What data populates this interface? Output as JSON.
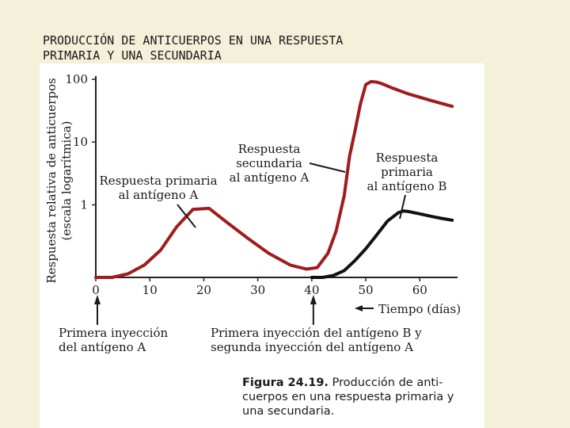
{
  "slide": {
    "title_line1": "PRODUCCIÓN DE ANTICUERPOS EN UNA RESPUESTA",
    "title_line2": "PRIMARIA Y UNA SECUNDARIA"
  },
  "caption": {
    "figure_label": "Figura 24.19.",
    "text_line1": " Producción de anti-",
    "text_line2": "cuerpos en una respuesta primaria y",
    "text_line3": "una secundaria."
  },
  "colors": {
    "antigen_a": "#a01c1c",
    "antigen_b": "#111111",
    "axis": "#222222",
    "text": "#1a1a1a"
  },
  "chart_data": {
    "type": "line",
    "xlabel": "Tiempo (días)",
    "ylabel_line1": "Respuesta relativa de anticuerpos",
    "ylabel_line2": "(escala logarítmica)",
    "yscale": "log",
    "xlim": [
      0,
      67
    ],
    "ylim": [
      0.07,
      100
    ],
    "x_ticks": [
      0,
      10,
      20,
      30,
      40,
      50,
      60
    ],
    "y_ticks": [
      1,
      10,
      100
    ],
    "grid": false,
    "series": [
      {
        "label": "antigen-a",
        "color": "#a01c1c",
        "x": [
          0,
          3,
          6,
          9,
          12,
          15,
          18,
          21,
          24,
          28,
          32,
          36,
          39,
          41,
          43,
          44.5,
          46,
          47,
          48,
          49,
          50,
          51,
          52,
          53,
          55,
          58,
          62,
          66
        ],
        "y": [
          0.07,
          0.07,
          0.08,
          0.11,
          0.19,
          0.45,
          0.85,
          0.88,
          0.55,
          0.3,
          0.17,
          0.11,
          0.095,
          0.1,
          0.17,
          0.38,
          1.4,
          6.0,
          15,
          40,
          82,
          92,
          90,
          85,
          72,
          58,
          46,
          37
        ]
      },
      {
        "label": "antigen-b",
        "color": "#111111",
        "x": [
          40,
          42,
          44,
          46,
          48,
          50,
          52,
          54,
          56,
          57,
          58,
          59,
          60,
          62,
          64,
          66
        ],
        "y": [
          0.07,
          0.07,
          0.075,
          0.09,
          0.13,
          0.2,
          0.33,
          0.55,
          0.75,
          0.8,
          0.78,
          0.75,
          0.72,
          0.66,
          0.61,
          0.57
        ]
      }
    ],
    "annotations": [
      {
        "line1": "Respuesta primaria",
        "line2": "al antígeno A",
        "line3": ""
      },
      {
        "line1": "Respuesta",
        "line2": "secundaria",
        "line3": "al antígeno A"
      },
      {
        "line1": "Respuesta",
        "line2": "primaria",
        "line3": "al antígeno B"
      }
    ],
    "injections": [
      {
        "x": 0,
        "line1": "Primera inyección",
        "line2": "del antígeno A"
      },
      {
        "x": 40,
        "line1": "Primera inyección del antígeno B y",
        "line2": "segunda inyección del antígeno A"
      }
    ]
  }
}
